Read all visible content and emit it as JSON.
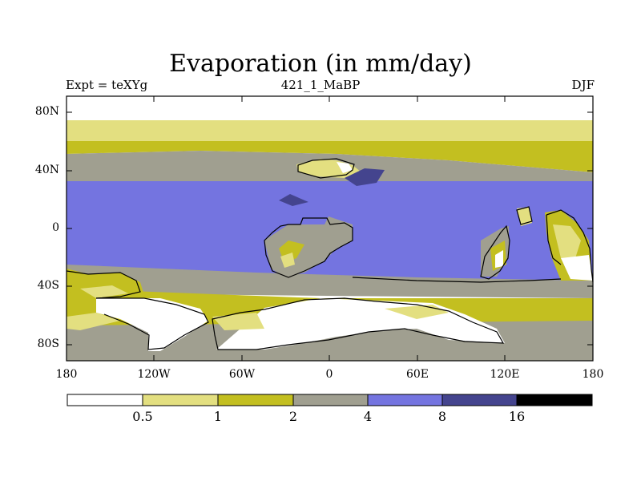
{
  "title": "Evaporation (in mm/day)",
  "left_subtitle": "Expt = teXYg",
  "center_subtitle": "421_1_MaBP",
  "right_subtitle": "DJF",
  "lat_labels": [
    "80N",
    "40N",
    "0",
    "40S",
    "80S"
  ],
  "lon_labels": [
    "180",
    "120W",
    "60W",
    "0",
    "60E",
    "120E",
    "180"
  ],
  "colorbar": {
    "levels": [
      "0.5",
      "1",
      "2",
      "4",
      "8",
      "16"
    ],
    "colors": [
      "#ffffff",
      "#e3df80",
      "#c3bf20",
      "#a09f90",
      "#7474e0",
      "#44448e",
      "#000000"
    ]
  },
  "land_outline_color": "#000000"
}
